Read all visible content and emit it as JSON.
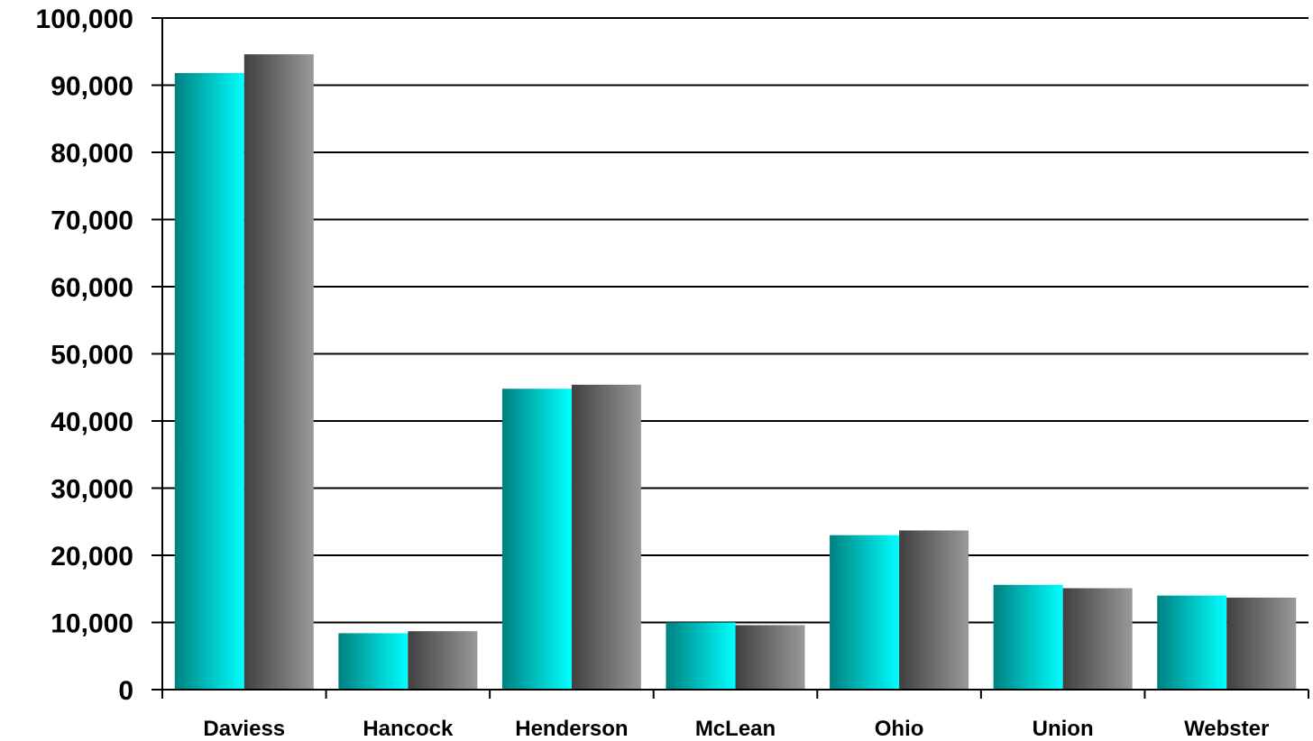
{
  "chart_data": {
    "type": "bar",
    "title": "",
    "xlabel": "",
    "ylabel": "",
    "categories": [
      "Daviess",
      "Hancock",
      "Henderson",
      "McLean",
      "Ohio",
      "Union",
      "Webster"
    ],
    "series": [
      {
        "values": [
          91800,
          8400,
          44800,
          10000,
          23000,
          15600,
          14000
        ],
        "color": "#00ffff",
        "gradient_from": "#008080"
      },
      {
        "values": [
          94600,
          8700,
          45400,
          9600,
          23700,
          15100,
          13700
        ],
        "color": "#999999",
        "gradient_from": "#404040"
      }
    ],
    "ylim": [
      0,
      100000
    ],
    "yticks": [
      "0",
      "10,000",
      "20,000",
      "30,000",
      "40,000",
      "50,000",
      "60,000",
      "70,000",
      "80,000",
      "90,000",
      "100,000"
    ],
    "grid": true,
    "legend": "none"
  }
}
